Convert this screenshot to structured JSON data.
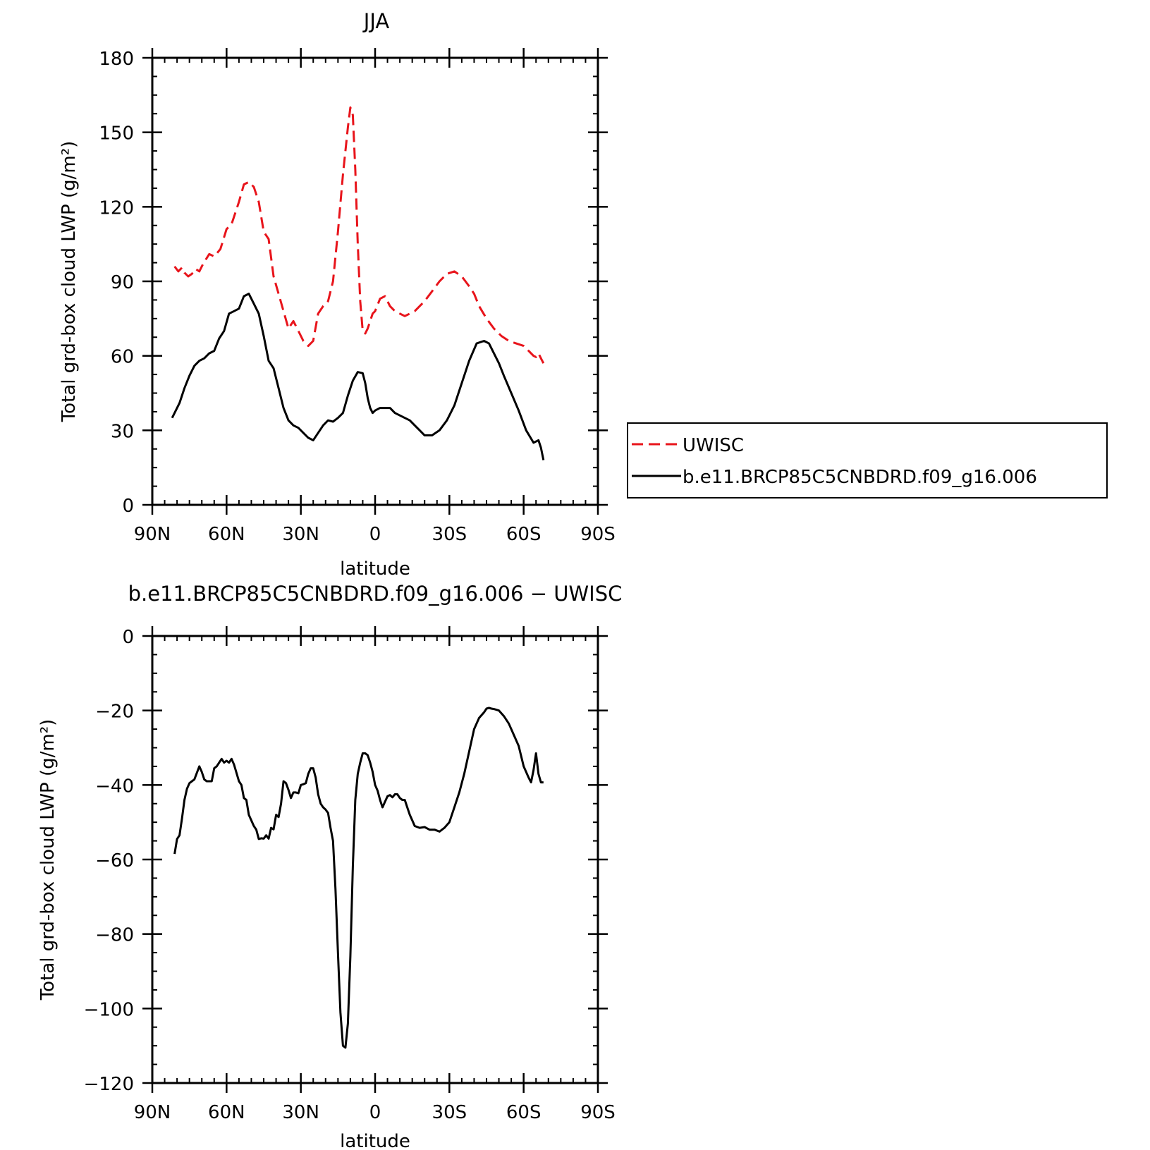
{
  "chart_data": [
    {
      "type": "line",
      "title": "JJA",
      "xlabel": "latitude",
      "ylabel": "Total grd-box cloud LWP (g/m²)",
      "xlim": [
        90,
        -90
      ],
      "ylim": [
        0,
        180
      ],
      "x_tick_values": [
        90,
        60,
        30,
        0,
        -30,
        -60,
        -90
      ],
      "x_ticks": [
        "90N",
        "60N",
        "30N",
        "0",
        "30S",
        "60S",
        "90S"
      ],
      "y_tick_values": [
        0,
        30,
        60,
        90,
        120,
        150,
        180
      ],
      "y_ticks": [
        "0",
        "30",
        "60",
        "90",
        "120",
        "150",
        "180"
      ],
      "legend_position": "right",
      "series": [
        {
          "name": "UWISC",
          "color": "#e8141b",
          "style": "dashed",
          "x": [
            81,
            79.5,
            78,
            77,
            75.5,
            74,
            72.5,
            71,
            69.5,
            67,
            65,
            62.5,
            60,
            58,
            55,
            53,
            51,
            49,
            47,
            45,
            43,
            41,
            39,
            37,
            35,
            33,
            31,
            29,
            27,
            25,
            23,
            21,
            19,
            17,
            15,
            13,
            11,
            10,
            9,
            8,
            7,
            6,
            5,
            4,
            3,
            2,
            1,
            0,
            -2,
            -4,
            -6,
            -8,
            -10,
            -12,
            -14,
            -16,
            -18,
            -20,
            -23,
            -26,
            -29,
            -32,
            -35,
            -38,
            -40,
            -42,
            -45,
            -48,
            -51,
            -54,
            -57,
            -60,
            -62,
            -64,
            -65,
            -66,
            -67,
            -68
          ],
          "values": [
            96,
            94,
            95.5,
            93.5,
            92,
            93,
            95,
            94,
            97,
            101,
            100,
            103,
            111,
            113,
            122,
            129,
            130,
            128,
            122,
            110,
            107,
            92,
            85,
            78,
            71,
            74,
            70,
            66,
            64,
            66,
            77,
            80,
            82,
            90,
            110,
            133,
            152,
            160,
            157,
            135,
            105,
            82,
            70,
            69,
            71,
            74,
            77,
            78,
            83,
            84,
            80,
            78,
            77,
            76,
            77,
            78,
            80,
            82,
            86,
            90,
            93,
            94,
            92,
            88,
            85,
            80,
            75,
            71,
            68,
            66,
            65,
            64,
            62,
            60,
            59.5,
            61,
            59,
            57
          ]
        },
        {
          "name": "b.e11.BRCP85C5CNBDRD.f09_g16.006",
          "color": "#000000",
          "style": "solid",
          "x": [
            82,
            81,
            79,
            77,
            75,
            73,
            71,
            69,
            67,
            65,
            63,
            61,
            59,
            57,
            55,
            53,
            51,
            49,
            47,
            45,
            43,
            41,
            39,
            37,
            35,
            33,
            31,
            29,
            27,
            25,
            23,
            21,
            19,
            17,
            15,
            13,
            11,
            9,
            7,
            5,
            4,
            3,
            2,
            1,
            0,
            -2,
            -4,
            -6,
            -8,
            -10,
            -12,
            -14,
            -16,
            -18,
            -20,
            -23,
            -26,
            -29,
            -32,
            -35,
            -38,
            -41,
            -44,
            -46,
            -48,
            -50,
            -52,
            -55,
            -58,
            -61,
            -64,
            -66,
            -67,
            -68
          ],
          "values": [
            35,
            37,
            41,
            47,
            52,
            56,
            58,
            59,
            61,
            62,
            67,
            70,
            77,
            78,
            79,
            84,
            85,
            81,
            77,
            68,
            58,
            55,
            47,
            39,
            34,
            32,
            31,
            29,
            27,
            26,
            29,
            32,
            34,
            33.5,
            35,
            37,
            44,
            50,
            53.5,
            53,
            49,
            43,
            39,
            37,
            38,
            39,
            39,
            39,
            37,
            36,
            35,
            34,
            32,
            30,
            28,
            28,
            30,
            34,
            40,
            49,
            58,
            65,
            66,
            65,
            61,
            57,
            52,
            45,
            38,
            30,
            25,
            26,
            23,
            18
          ]
        }
      ]
    },
    {
      "type": "line",
      "title": "b.e11.BRCP85C5CNBDRD.f09_g16.006 − UWISC",
      "xlabel": "latitude",
      "ylabel": "Total grd-box cloud LWP (g/m²)",
      "xlim": [
        90,
        -90
      ],
      "ylim": [
        -120,
        0
      ],
      "x_tick_values": [
        90,
        60,
        30,
        0,
        -30,
        -60,
        -90
      ],
      "x_ticks": [
        "90N",
        "60N",
        "30N",
        "0",
        "30S",
        "60S",
        "90S"
      ],
      "y_tick_values": [
        0,
        -20,
        -40,
        -60,
        -80,
        -100,
        -120
      ],
      "y_ticks": [
        "0",
        "−20",
        "−40",
        "−60",
        "−80",
        "−100",
        "−120"
      ],
      "series": [
        {
          "color": "#000000",
          "style": "solid",
          "x": [
            81,
            80,
            79,
            78,
            77,
            76,
            75,
            74,
            73,
            71,
            70,
            69,
            68,
            66,
            65,
            64,
            62,
            61,
            60,
            59,
            58,
            57,
            55,
            54,
            53,
            52,
            51,
            49,
            48,
            47,
            46,
            45,
            44,
            43,
            42,
            41,
            40,
            39,
            38,
            37,
            36,
            35,
            34,
            33,
            32,
            31,
            30,
            29,
            28,
            27,
            26,
            25,
            24,
            23,
            22,
            21,
            20,
            19,
            18,
            17,
            16,
            15,
            14,
            13,
            12,
            11,
            10,
            9,
            8,
            7,
            6,
            5,
            4,
            3,
            2,
            1,
            0,
            -1,
            -2,
            -3,
            -4,
            -5,
            -6,
            -7,
            -8,
            -9,
            -10,
            -11,
            -12,
            -13,
            -14,
            -15,
            -16,
            -18,
            -20,
            -22,
            -24,
            -26,
            -28,
            -30,
            -32,
            -34,
            -36,
            -38,
            -40,
            -42,
            -44,
            -45,
            -46,
            -47,
            -48,
            -50,
            -52,
            -54,
            -56,
            -58,
            -60,
            -62,
            -63,
            -64,
            -65,
            -66,
            -67,
            -68
          ],
          "values": [
            -58.5,
            -54.5,
            -53.5,
            -49,
            -44,
            -41,
            -39.5,
            -39,
            -38.5,
            -35,
            -36.5,
            -38.5,
            -39,
            -39,
            -35.5,
            -35,
            -33,
            -34,
            -33.5,
            -34,
            -33,
            -34.5,
            -39,
            -40,
            -43.5,
            -44,
            -48,
            -51,
            -52,
            -54.5,
            -54.3,
            -54.4,
            -53.5,
            -54.4,
            -51.5,
            -51.9,
            -48,
            -48.6,
            -45,
            -39,
            -39.5,
            -41.3,
            -43.5,
            -42,
            -42,
            -42.2,
            -40,
            -39.8,
            -39.5,
            -37,
            -35.5,
            -35.5,
            -38,
            -42.5,
            -45,
            -46,
            -46.6,
            -47.5,
            -51.5,
            -55,
            -68,
            -85,
            -101,
            -110,
            -110.5,
            -104,
            -86,
            -62,
            -44,
            -37,
            -34,
            -31.5,
            -31.5,
            -32,
            -34,
            -36.5,
            -40,
            -41.5,
            -44,
            -46,
            -44.5,
            -43,
            -42.7,
            -43.3,
            -42.5,
            -42.5,
            -43.5,
            -44,
            -44,
            -46,
            -48,
            -49.5,
            -51,
            -51.5,
            -51.3,
            -52,
            -52,
            -52.5,
            -51.5,
            -50,
            -46,
            -42,
            -37,
            -31,
            -25,
            -22,
            -20.5,
            -19.5,
            -19.3,
            -19.5,
            -19.6,
            -20,
            -21.5,
            -23.5,
            -26.5,
            -29.5,
            -35,
            -38,
            -39.3,
            -36,
            -31.5,
            -37,
            -39.3,
            -39.3
          ]
        }
      ]
    }
  ]
}
